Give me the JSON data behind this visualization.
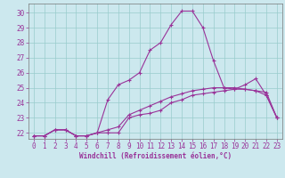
{
  "xlabel": "Windchill (Refroidissement éolien,°C)",
  "bg_color": "#cce8ee",
  "grid_color": "#99cccc",
  "line_color": "#993399",
  "spine_color": "#777777",
  "x_ticks": [
    0,
    1,
    2,
    3,
    4,
    5,
    6,
    7,
    8,
    9,
    10,
    11,
    12,
    13,
    14,
    15,
    16,
    17,
    18,
    19,
    20,
    21,
    22,
    23
  ],
  "y_ticks": [
    22,
    23,
    24,
    25,
    26,
    27,
    28,
    29,
    30
  ],
  "ylim": [
    21.6,
    30.6
  ],
  "xlim": [
    -0.5,
    23.5
  ],
  "line1_x": [
    0,
    1,
    2,
    3,
    4,
    5,
    6,
    7,
    8,
    9,
    10,
    11,
    12,
    13,
    14,
    15,
    16,
    17,
    18,
    19,
    20,
    21,
    22,
    23
  ],
  "line1_y": [
    21.8,
    21.8,
    22.2,
    22.2,
    21.8,
    21.8,
    22.0,
    22.0,
    22.0,
    23.0,
    23.2,
    23.3,
    23.5,
    24.0,
    24.2,
    24.5,
    24.6,
    24.7,
    24.8,
    24.9,
    24.9,
    24.8,
    24.7,
    23.0
  ],
  "line2_x": [
    0,
    1,
    2,
    3,
    4,
    5,
    6,
    7,
    8,
    9,
    10,
    11,
    12,
    13,
    14,
    15,
    16,
    17,
    18,
    19,
    20,
    21,
    22,
    23
  ],
  "line2_y": [
    21.8,
    21.8,
    22.2,
    22.2,
    21.8,
    21.8,
    22.0,
    24.2,
    25.2,
    25.5,
    26.0,
    27.5,
    28.0,
    29.2,
    30.1,
    30.1,
    29.0,
    26.8,
    25.0,
    24.9,
    25.2,
    25.6,
    24.5,
    23.0
  ],
  "line3_x": [
    0,
    1,
    2,
    3,
    4,
    5,
    6,
    7,
    8,
    9,
    10,
    11,
    12,
    13,
    14,
    15,
    16,
    17,
    18,
    19,
    20,
    21,
    22,
    23
  ],
  "line3_y": [
    21.8,
    21.8,
    22.2,
    22.2,
    21.8,
    21.8,
    22.0,
    22.2,
    22.4,
    23.2,
    23.5,
    23.8,
    24.1,
    24.4,
    24.6,
    24.8,
    24.9,
    25.0,
    25.0,
    25.0,
    24.9,
    24.8,
    24.5,
    23.0
  ],
  "tick_fontsize": 5.5,
  "xlabel_fontsize": 5.5
}
